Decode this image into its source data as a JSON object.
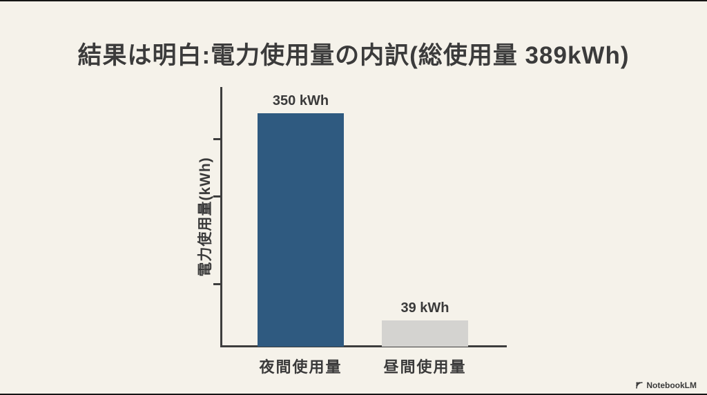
{
  "page": {
    "background_color": "#f5f2ea",
    "text_color": "#3a3a3a"
  },
  "chart_data": {
    "type": "bar",
    "title": "結果は明白:電力使用量の内訳(総使用量 389kWh)",
    "categories": [
      "夜間使用量",
      "昼間使用量"
    ],
    "values": [
      350,
      39
    ],
    "value_labels": [
      "350 kWh",
      "39 kWh"
    ],
    "bar_colors": [
      "#2f5a80",
      "#d4d3d0"
    ],
    "xlabel": "",
    "ylabel": "電力使用量(kWh)",
    "ylim": [
      0,
      389
    ],
    "total_kwh": 389,
    "grid": false,
    "legend": false,
    "axis_color": "#3d3d3d"
  },
  "watermark": {
    "label": "NotebookLM"
  }
}
